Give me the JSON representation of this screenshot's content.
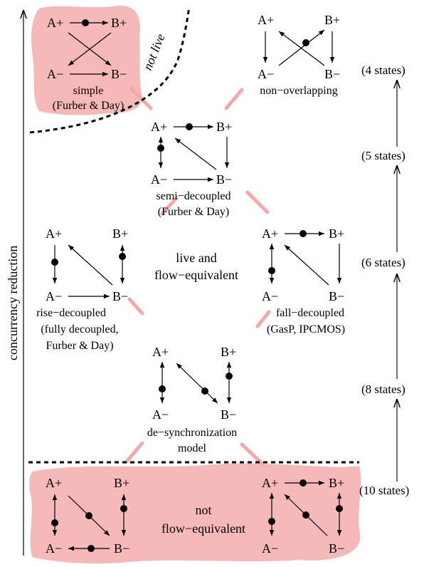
{
  "axis_label": "concurrency reduction",
  "not_live_label": "not live",
  "live_label": [
    "live and",
    "flow−equivalent"
  ],
  "not_flow_label": [
    "not",
    "flow−equivalent"
  ],
  "states": [
    "(4 states)",
    "(5 states)",
    "(6 states)",
    "(8 states)",
    "(10 states)"
  ],
  "models": {
    "simple": {
      "nodes": [
        "A+",
        "B+",
        "A−",
        "B−"
      ],
      "caption": [
        "simple",
        "(Furber & Day)"
      ]
    },
    "non_overlapping": {
      "nodes": [
        "A+",
        "B+",
        "A−",
        "B−"
      ],
      "caption": [
        "non−overlapping"
      ]
    },
    "semi_decoupled": {
      "nodes": [
        "A+",
        "B+",
        "A−",
        "B−"
      ],
      "caption": [
        "semi−decoupled",
        "(Furber & Day)"
      ]
    },
    "rise_decoupled": {
      "nodes": [
        "A+",
        "B+",
        "A−",
        "B−"
      ],
      "caption": [
        "rise−decoupled",
        "(fully decoupled,",
        "Furber & Day)"
      ]
    },
    "fall_decoupled": {
      "nodes": [
        "A+",
        "B+",
        "A−",
        "B−"
      ],
      "caption": [
        "fall−decoupled",
        "(GasP, IPCMOS)"
      ]
    },
    "desync": {
      "nodes": [
        "A+",
        "B+",
        "A−",
        "B−"
      ],
      "caption": [
        "de−synchronization",
        "model"
      ]
    },
    "nf_left": {
      "nodes": [
        "A+",
        "B+",
        "A−",
        "B−"
      ]
    },
    "nf_right": {
      "nodes": [
        "A+",
        "B+",
        "A−",
        "B−"
      ]
    }
  }
}
